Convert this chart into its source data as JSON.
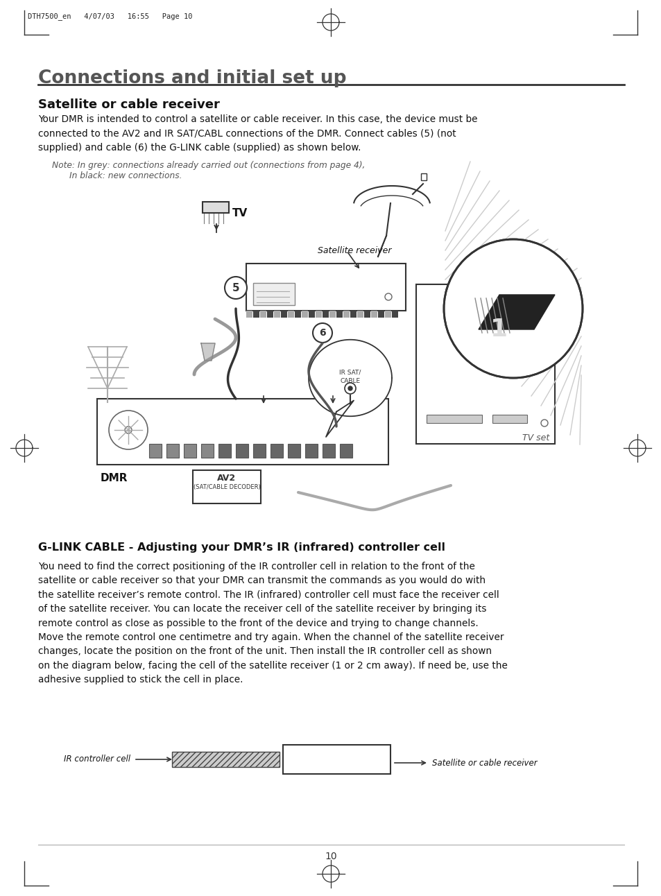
{
  "bg_color": "#ffffff",
  "page_header": "DTH7500_en   4/07/03   16:55   Page 10",
  "main_title": "Connections and initial set up",
  "section1_title": "Satellite or cable receiver",
  "section1_body_line1": "Your DMR is intended to control a satellite or cable receiver. In this case, the device must be",
  "section1_body_line2": "connected to the AV2 and IR SAT/CABL connections of the DMR. Connect cables (\u00035\u0003) (not",
  "section1_body_line3": "supplied) and cable (\u00036\u0003) the G-LINK cable (supplied) as shown below.",
  "section1_note1": "Note: In grey: connections already carried out (connections from page 4),",
  "section1_note2": "In black: new connections.",
  "section2_title": "G-LINK CABLE - Adjusting your DMR’s IR (infrared) controller cell",
  "section2_body": "You need to find the correct positioning of the IR controller cell in relation to the front of the\nsatellite or cable receiver so that your DMR can transmit the commands as you would do with\nthe satellite receiver’s remote control. The IR (infrared) controller cell must face the receiver cell\nof the satellite receiver. You can locate the receiver cell of the satellite receiver by bringing its\nremote control as close as possible to the front of the device and trying to change channels.\nMove the remote control one centimetre and try again. When the channel of the satellite receiver\nchanges, locate the position on the front of the unit. Then install the IR controller cell as shown\non the diagram below, facing the cell of the satellite receiver (1 or 2 cm away). If need be, use the\nadhesive supplied to stick the cell in place.",
  "label_ir_controller": "IR controller cell",
  "label_satellite_receiver": "Satellite or cable receiver",
  "page_number": "10",
  "title_color": "#555555",
  "text_color": "#111111",
  "gray_color": "#888888",
  "line_color": "#222222",
  "light_gray": "#aaaaaa",
  "note_color": "#555555"
}
